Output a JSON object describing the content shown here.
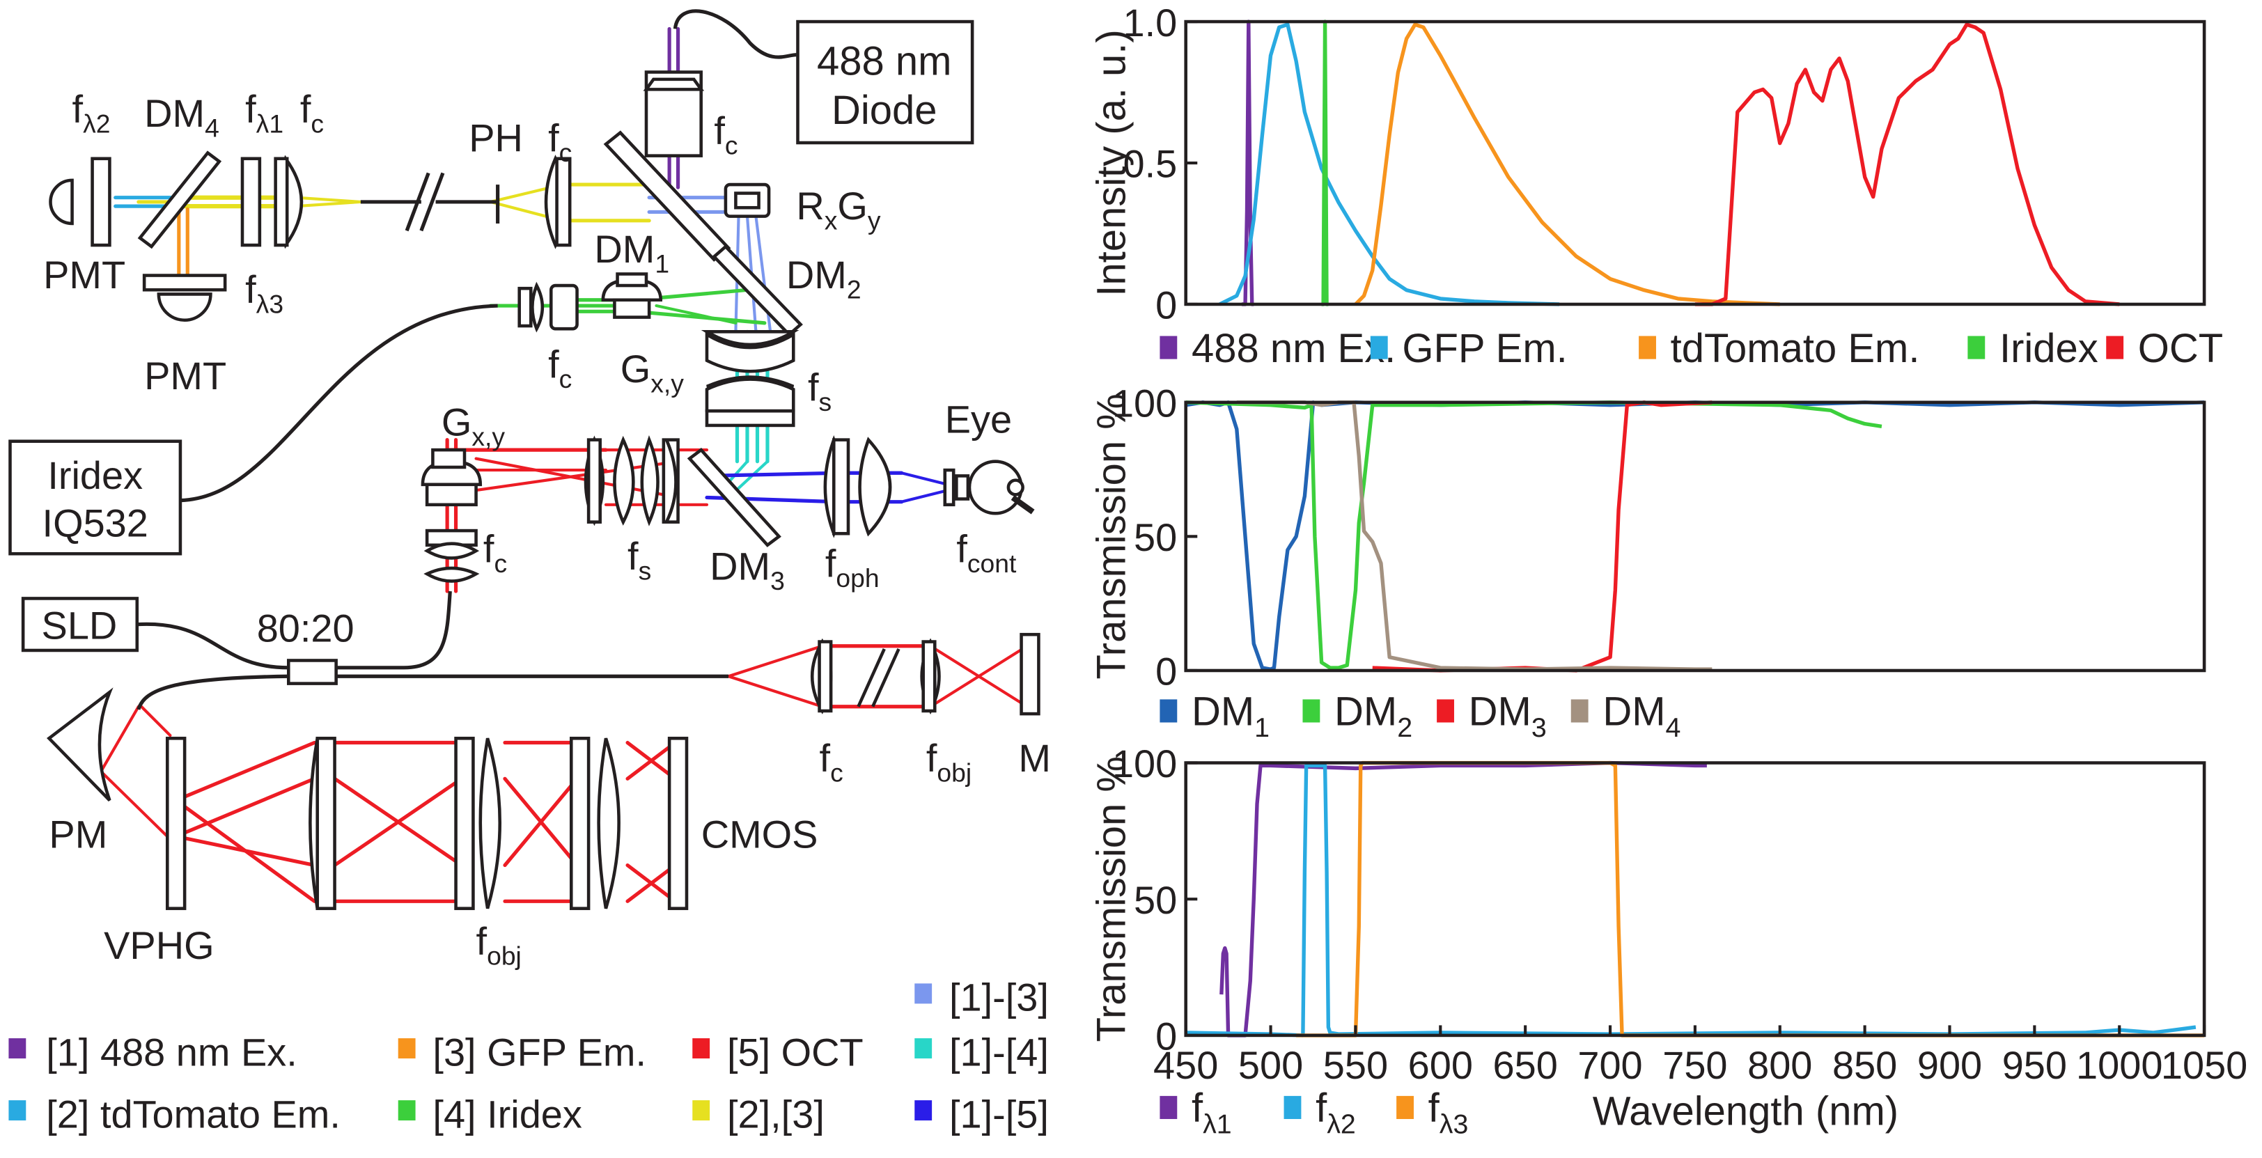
{
  "diagram": {
    "boxes": {
      "diode_line1": "488 nm",
      "diode_line2": "Diode",
      "iridex_line1": "Iridex",
      "iridex_line2": "IQ532",
      "sld": "SLD"
    },
    "labels": {
      "f": "f",
      "sub_l2": "λ2",
      "sub_l1": "λ1",
      "sub_l3": "λ3",
      "sub_c": "c",
      "sub_s": "s",
      "sub_oph": "oph",
      "sub_cont": "cont",
      "sub_obj": "obj",
      "DM": "DM",
      "sub_1": "1",
      "sub_2": "2",
      "sub_3": "3",
      "sub_4": "4",
      "PMT": "PMT",
      "PH": "PH",
      "R": "R",
      "sub_x": "x",
      "G": "G",
      "sub_y": "y",
      "sub_xy": "x,y",
      "eye": "Eye",
      "coupler": "80:20",
      "PM": "PM",
      "VPHG": "VPHG",
      "CMOS": "CMOS",
      "M": "M"
    },
    "legend": [
      {
        "label": "[1] 488 nm Ex.",
        "color": "#7030a0"
      },
      {
        "label": "[2] tdTomato Em.",
        "color": "#29aae1"
      },
      {
        "label": "[3] GFP Em.",
        "color": "#f7941d"
      },
      {
        "label": "[4] Iridex",
        "color": "#3ccf3c"
      },
      {
        "label": "[5] OCT",
        "color": "#ed1c24"
      },
      {
        "label": "[2],[3]",
        "color": "#e6e020"
      },
      {
        "label": "[1]-[3]",
        "color": "#7b97ee"
      },
      {
        "label": "[1]-[4]",
        "color": "#28d6c8"
      },
      {
        "label": "[1]-[5]",
        "color": "#2a1de8"
      }
    ]
  },
  "chart_data": [
    {
      "type": "line",
      "ylabel": "Intensity (a. u.)",
      "xlabel": "",
      "xlim": [
        450,
        1050
      ],
      "ylim": [
        0,
        1.0
      ],
      "yticks": [
        {
          "v": 0,
          "label": "0"
        },
        {
          "v": 0.5,
          "label": "0.5"
        },
        {
          "v": 1.0,
          "label": "1.0"
        }
      ],
      "series": [
        {
          "name": "488 nm Ex.",
          "color": "#7030a0",
          "x": [
            483,
            485,
            486,
            487,
            488,
            489,
            490
          ],
          "y": [
            0,
            0,
            0.33,
            1.0,
            0.3,
            0,
            0
          ]
        },
        {
          "name": "GFP Em.",
          "color": "#29aae1",
          "x": [
            470,
            480,
            485,
            490,
            495,
            500,
            505,
            510,
            515,
            520,
            530,
            540,
            550,
            560,
            570,
            580,
            600,
            620,
            640,
            670
          ],
          "y": [
            0,
            0.03,
            0.1,
            0.3,
            0.6,
            0.88,
            0.98,
            0.99,
            0.86,
            0.68,
            0.48,
            0.36,
            0.26,
            0.17,
            0.09,
            0.05,
            0.02,
            0.01,
            0.005,
            0
          ]
        },
        {
          "name": "tdTomato Em.",
          "color": "#f7941d",
          "x": [
            550,
            555,
            560,
            565,
            570,
            575,
            580,
            585,
            590,
            600,
            610,
            620,
            640,
            660,
            680,
            700,
            720,
            740,
            760,
            780,
            800
          ],
          "y": [
            0,
            0.03,
            0.12,
            0.35,
            0.6,
            0.82,
            0.94,
            0.99,
            0.98,
            0.88,
            0.77,
            0.66,
            0.45,
            0.29,
            0.17,
            0.09,
            0.05,
            0.02,
            0.01,
            0.005,
            0
          ]
        },
        {
          "name": "Iridex",
          "color": "#3ccf3c",
          "x": [
            530,
            531,
            532,
            533,
            534
          ],
          "y": [
            0,
            0,
            1.0,
            0,
            0
          ]
        },
        {
          "name": "OCT",
          "color": "#ed1c24",
          "x": [
            750,
            760,
            768,
            775,
            785,
            790,
            795,
            800,
            805,
            810,
            815,
            820,
            825,
            830,
            835,
            840,
            850,
            855,
            860,
            870,
            880,
            890,
            900,
            905,
            910,
            915,
            920,
            930,
            940,
            950,
            960,
            970,
            980,
            1000
          ],
          "y": [
            0,
            0,
            0.02,
            0.68,
            0.75,
            0.76,
            0.73,
            0.57,
            0.64,
            0.78,
            0.83,
            0.75,
            0.72,
            0.83,
            0.87,
            0.79,
            0.45,
            0.38,
            0.55,
            0.73,
            0.79,
            0.83,
            0.92,
            0.94,
            0.99,
            0.98,
            0.96,
            0.76,
            0.48,
            0.28,
            0.13,
            0.05,
            0.01,
            0
          ]
        }
      ],
      "legend": [
        {
          "label": "488 nm Ex.",
          "color": "#7030a0"
        },
        {
          "label": "GFP Em.",
          "color": "#29aae1"
        },
        {
          "label": "tdTomato Em.",
          "color": "#f7941d"
        },
        {
          "label": "Iridex",
          "color": "#3ccf3c"
        },
        {
          "label": "OCT",
          "color": "#ed1c24"
        }
      ]
    },
    {
      "type": "line",
      "ylabel": "Transmission %",
      "xlabel": "",
      "xlim": [
        450,
        1050
      ],
      "ylim": [
        0,
        100
      ],
      "yticks": [
        {
          "v": 0,
          "label": "0"
        },
        {
          "v": 50,
          "label": "50"
        },
        {
          "v": 100,
          "label": "100"
        }
      ],
      "series": [
        {
          "name": "DM1",
          "color": "#2264b4",
          "x": [
            450,
            460,
            470,
            475,
            480,
            485,
            490,
            495,
            500,
            502,
            505,
            510,
            515,
            520,
            525,
            530,
            550,
            600,
            650,
            700,
            750,
            800,
            850,
            900,
            950,
            1000,
            1050
          ],
          "y": [
            99,
            100,
            99,
            100,
            90,
            50,
            10,
            1,
            0.5,
            1,
            20,
            45,
            50,
            65,
            100,
            99,
            100,
            99,
            100,
            99,
            100,
            99,
            100,
            99,
            100,
            99,
            100
          ]
        },
        {
          "name": "DM2",
          "color": "#3ccf3c",
          "x": [
            450,
            500,
            520,
            524,
            526,
            530,
            535,
            540,
            545,
            550,
            552,
            555,
            560,
            600,
            700,
            800,
            830,
            840,
            850,
            860
          ],
          "y": [
            100,
            99,
            98,
            99,
            50,
            3,
            1,
            1,
            2,
            30,
            55,
            70,
            99,
            99,
            100,
            99,
            97,
            94,
            92,
            91
          ]
        },
        {
          "name": "DM3",
          "color": "#ed1c24",
          "x": [
            560,
            600,
            650,
            680,
            700,
            703,
            705,
            710,
            720,
            730,
            760
          ],
          "y": [
            1,
            0,
            1,
            0,
            5,
            30,
            60,
            99,
            100,
            99,
            100
          ]
        },
        {
          "name": "DM4",
          "color": "#a39180",
          "x": [
            480,
            500,
            520,
            530,
            540,
            549,
            552,
            555,
            560,
            565,
            570,
            600,
            650,
            700,
            750,
            760
          ],
          "y": [
            100,
            100,
            100,
            99,
            100,
            100,
            80,
            52,
            48,
            40,
            5,
            1,
            0.5,
            1,
            0.5,
            0.5
          ]
        }
      ],
      "legend": [
        {
          "label": "DM",
          "sub": "1",
          "color": "#2264b4"
        },
        {
          "label": "DM",
          "sub": "2",
          "color": "#3ccf3c"
        },
        {
          "label": "DM",
          "sub": "3",
          "color": "#ed1c24"
        },
        {
          "label": "DM",
          "sub": "4",
          "color": "#a39180"
        }
      ]
    },
    {
      "type": "line",
      "ylabel": "Transmission %",
      "xlabel": "Wavelength (nm)",
      "xlim": [
        450,
        1050
      ],
      "ylim": [
        0,
        100
      ],
      "xticks": [
        450,
        500,
        550,
        600,
        650,
        700,
        750,
        800,
        850,
        900,
        950,
        1000,
        1050
      ],
      "yticks": [
        {
          "v": 0,
          "label": "0"
        },
        {
          "v": 50,
          "label": "50"
        },
        {
          "v": 100,
          "label": "100"
        }
      ],
      "series": [
        {
          "name": "fλ1",
          "color": "#7030a0",
          "x": [
            471,
            472,
            473,
            474,
            475,
            480,
            485,
            488,
            490,
            492,
            494,
            500,
            550,
            600,
            650,
            700,
            750,
            757
          ],
          "y": [
            15,
            30,
            32,
            30,
            0,
            0,
            0,
            20,
            50,
            85,
            99,
            99,
            98,
            99,
            99,
            100,
            99,
            99
          ]
        },
        {
          "name": "fλ2",
          "color": "#29aae1",
          "x": [
            450,
            500,
            519,
            520,
            521,
            532,
            533,
            534,
            535,
            540,
            600,
            700,
            800,
            900,
            980,
            1000,
            1020,
            1045
          ],
          "y": [
            1,
            0.5,
            0,
            60,
            99,
            99,
            60,
            3,
            1,
            0.5,
            1,
            0.5,
            1,
            0.5,
            1,
            2,
            1,
            3
          ]
        },
        {
          "name": "fλ3",
          "color": "#f7941d",
          "x": [
            515,
            550,
            552,
            553,
            554,
            700,
            703,
            705,
            707,
            710,
            1050
          ],
          "y": [
            0,
            0,
            40,
            99,
            100,
            100,
            99,
            40,
            0,
            0,
            0
          ]
        }
      ],
      "legend": [
        {
          "label": "f",
          "sub": "λ1",
          "color": "#7030a0"
        },
        {
          "label": "f",
          "sub": "λ2",
          "color": "#29aae1"
        },
        {
          "label": "f",
          "sub": "λ3",
          "color": "#f7941d"
        }
      ]
    }
  ]
}
